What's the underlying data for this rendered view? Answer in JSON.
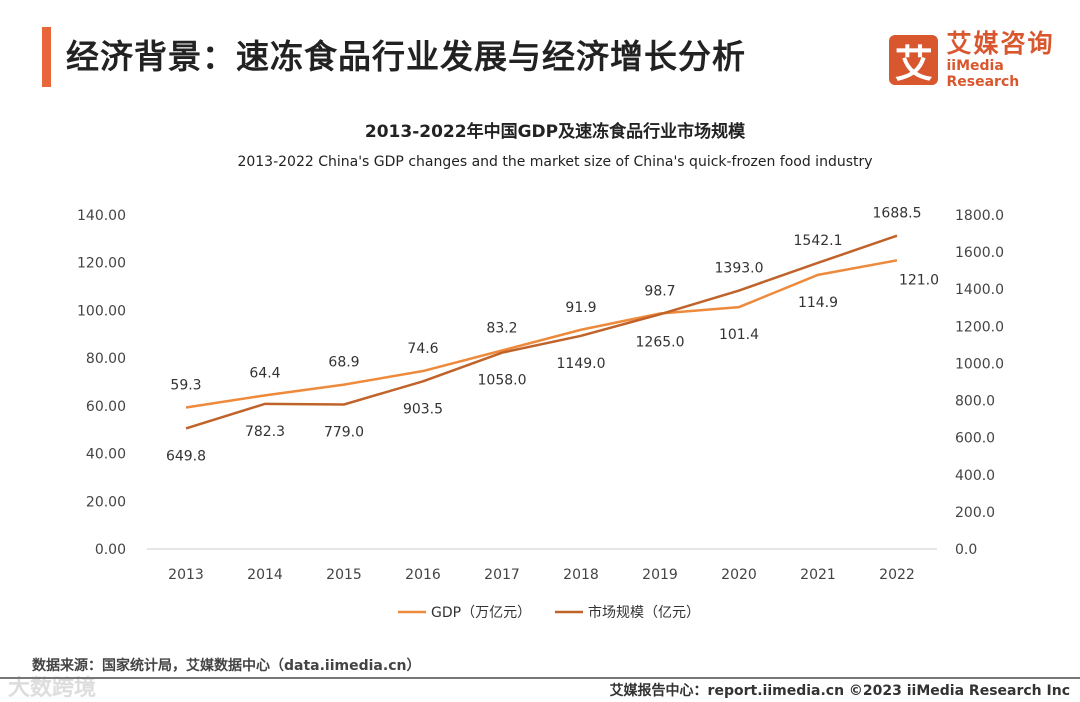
{
  "header": {
    "title": "经济背景：速冻食品行业发展与经济增长分析",
    "logo_mark": "艾",
    "logo_cn": "艾媒咨询",
    "logo_en": "iiMedia Research"
  },
  "footer": {
    "source": "数据来源：国家统计局，艾媒数据中心（data.iimedia.cn）",
    "credit": "艾媒报告中心：report.iimedia.cn  ©2023  iiMedia Research  Inc",
    "watermark": "大数跨境"
  },
  "chart_data": {
    "type": "line",
    "title": "2013-2022年中国GDP及速冻食品行业市场规模",
    "subtitle": "2013-2022 China's GDP changes and the market size of China's quick-frozen food industry",
    "categories": [
      "2013",
      "2014",
      "2015",
      "2016",
      "2017",
      "2018",
      "2019",
      "2020",
      "2021",
      "2022"
    ],
    "y_left": {
      "ylim": [
        0,
        140
      ],
      "ticks": [
        "0.00",
        "20.00",
        "40.00",
        "60.00",
        "80.00",
        "100.00",
        "120.00",
        "140.00"
      ]
    },
    "y_right": {
      "ylim": [
        0,
        1800
      ],
      "ticks": [
        "0.0",
        "200.0",
        "400.0",
        "600.0",
        "800.0",
        "1000.0",
        "1200.0",
        "1400.0",
        "1600.0",
        "1800.0"
      ]
    },
    "series": [
      {
        "name": "GDP（万亿元）",
        "axis": "left",
        "color": "#ee8a3c",
        "values": [
          59.3,
          64.4,
          68.9,
          74.6,
          83.2,
          91.9,
          98.7,
          101.4,
          114.9,
          121.0
        ],
        "labels": [
          "59.3",
          "64.4",
          "68.9",
          "74.6",
          "83.2",
          "91.9",
          "98.7",
          "101.4",
          "114.9",
          "121.0"
        ]
      },
      {
        "name": "市场规模（亿元）",
        "axis": "right",
        "color": "#c0632a",
        "values": [
          649.8,
          782.3,
          779.0,
          903.5,
          1058.0,
          1149.0,
          1265.0,
          1393.0,
          1542.1,
          1688.5
        ],
        "labels": [
          "649.8",
          "782.3",
          "779.0",
          "903.5",
          "1058.0",
          "1149.0",
          "1265.0",
          "1393.0",
          "1542.1",
          "1688.5"
        ]
      }
    ],
    "legend": "bottom"
  }
}
